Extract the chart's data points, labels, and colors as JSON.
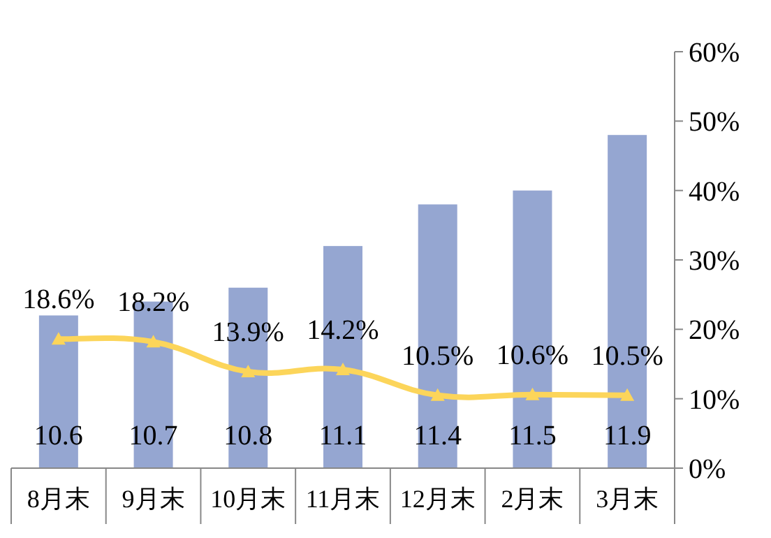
{
  "chart_data": {
    "type": "bar",
    "categories": [
      "8月末",
      "9月末",
      "10月末",
      "11月末",
      "12月末",
      "2月末",
      "3月末"
    ],
    "ylim": [
      9.5,
      12.5
    ],
    "y2lim": [
      0,
      60
    ],
    "y2ticks": [
      {
        "value": 0,
        "label": "0%"
      },
      {
        "value": 10,
        "label": "10%"
      },
      {
        "value": 20,
        "label": "20%"
      },
      {
        "value": 30,
        "label": "30%"
      },
      {
        "value": 40,
        "label": "40%"
      },
      {
        "value": 50,
        "label": "50%"
      },
      {
        "value": 60,
        "label": "60%"
      }
    ],
    "series": [
      {
        "color": "#95a6d1",
        "values": [
          10.6,
          10.7,
          10.8,
          11.1,
          11.4,
          11.5,
          11.9
        ],
        "value_labels": [
          "10.6",
          "10.7",
          "10.8",
          "11.1",
          "11.4",
          "11.5",
          "11.9"
        ]
      },
      {
        "type": "line",
        "axis": "y2",
        "color": "#fcd55a",
        "marker": "triangle",
        "values": [
          18.6,
          18.2,
          13.9,
          14.2,
          10.5,
          10.6,
          10.5
        ],
        "value_labels": [
          "18.6%",
          "18.2%",
          "13.9%",
          "14.2%",
          "10.5%",
          "10.6%",
          "10.5%"
        ]
      }
    ],
    "grid": false
  }
}
